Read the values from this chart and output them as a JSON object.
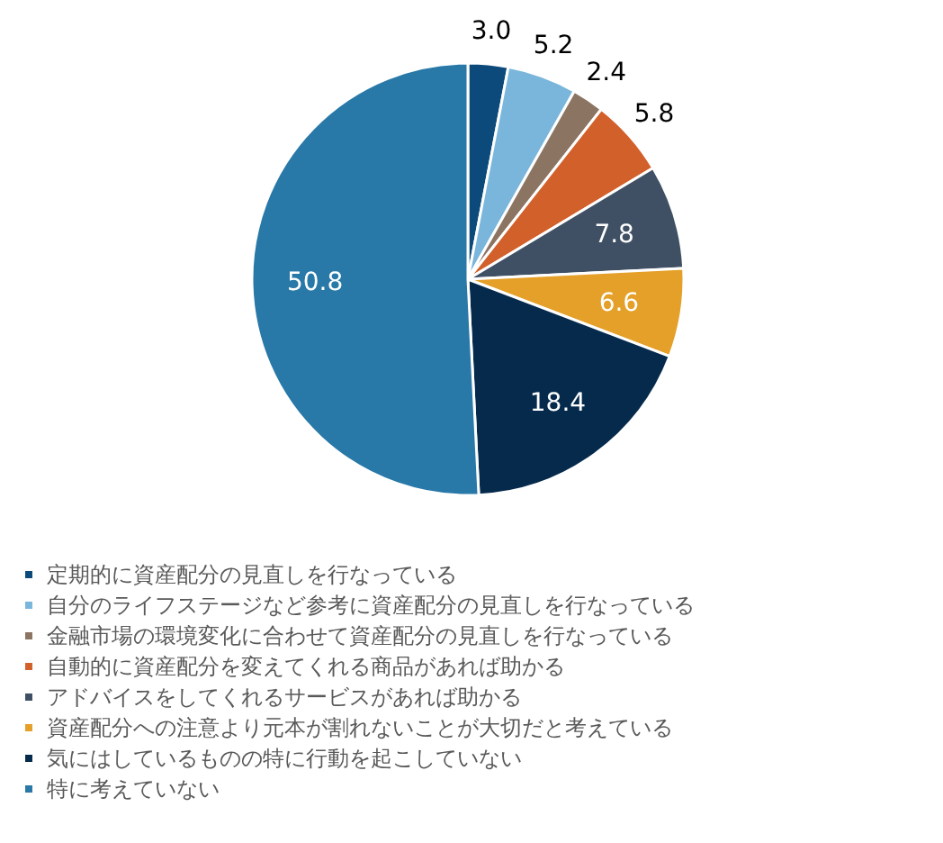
{
  "chart_data": {
    "type": "pie",
    "categories": [
      "定期的に資産配分の見直しを行なっている",
      "自分のライフステージなど参考に資産配分の見直しを行なっている",
      "金融市場の環境変化に合わせて資産配分の見直しを行なっている",
      "自動的に資産配分を変えてくれる商品があれば助かる",
      "アドバイスをしてくれるサービスがあれば助かる",
      "資産配分への注意より元本が割れないことが大切だと考えている",
      "気にはしているものの特に行動を起こしていない",
      "特に考えていない"
    ],
    "values": [
      3.0,
      5.2,
      2.4,
      5.8,
      7.8,
      6.6,
      18.4,
      50.8
    ],
    "colors": [
      "#0b4a7a",
      "#7ab6dc",
      "#8c7462",
      "#d2602a",
      "#3f5064",
      "#e4a028",
      "#062a4c",
      "#2878a8"
    ],
    "value_labels": [
      "3.0",
      "5.2",
      "2.4",
      "5.8",
      "7.8",
      "6.6",
      "18.4",
      "50.8"
    ],
    "legend": "bottom"
  }
}
